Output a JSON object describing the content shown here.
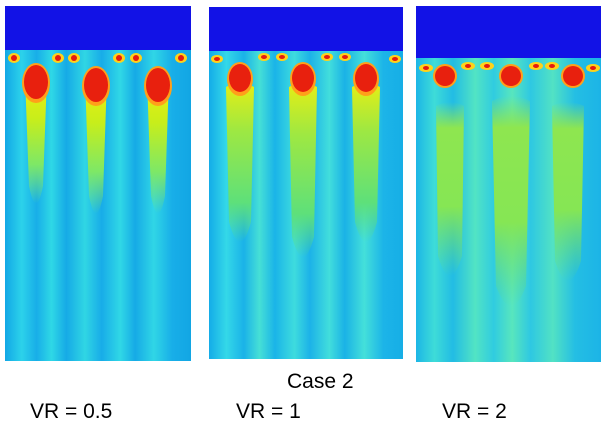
{
  "figure": {
    "caption": "Case 2",
    "panels": [
      {
        "label": "VR = 0.5"
      },
      {
        "label": "VR = 1"
      },
      {
        "label": "VR = 2"
      }
    ]
  }
}
